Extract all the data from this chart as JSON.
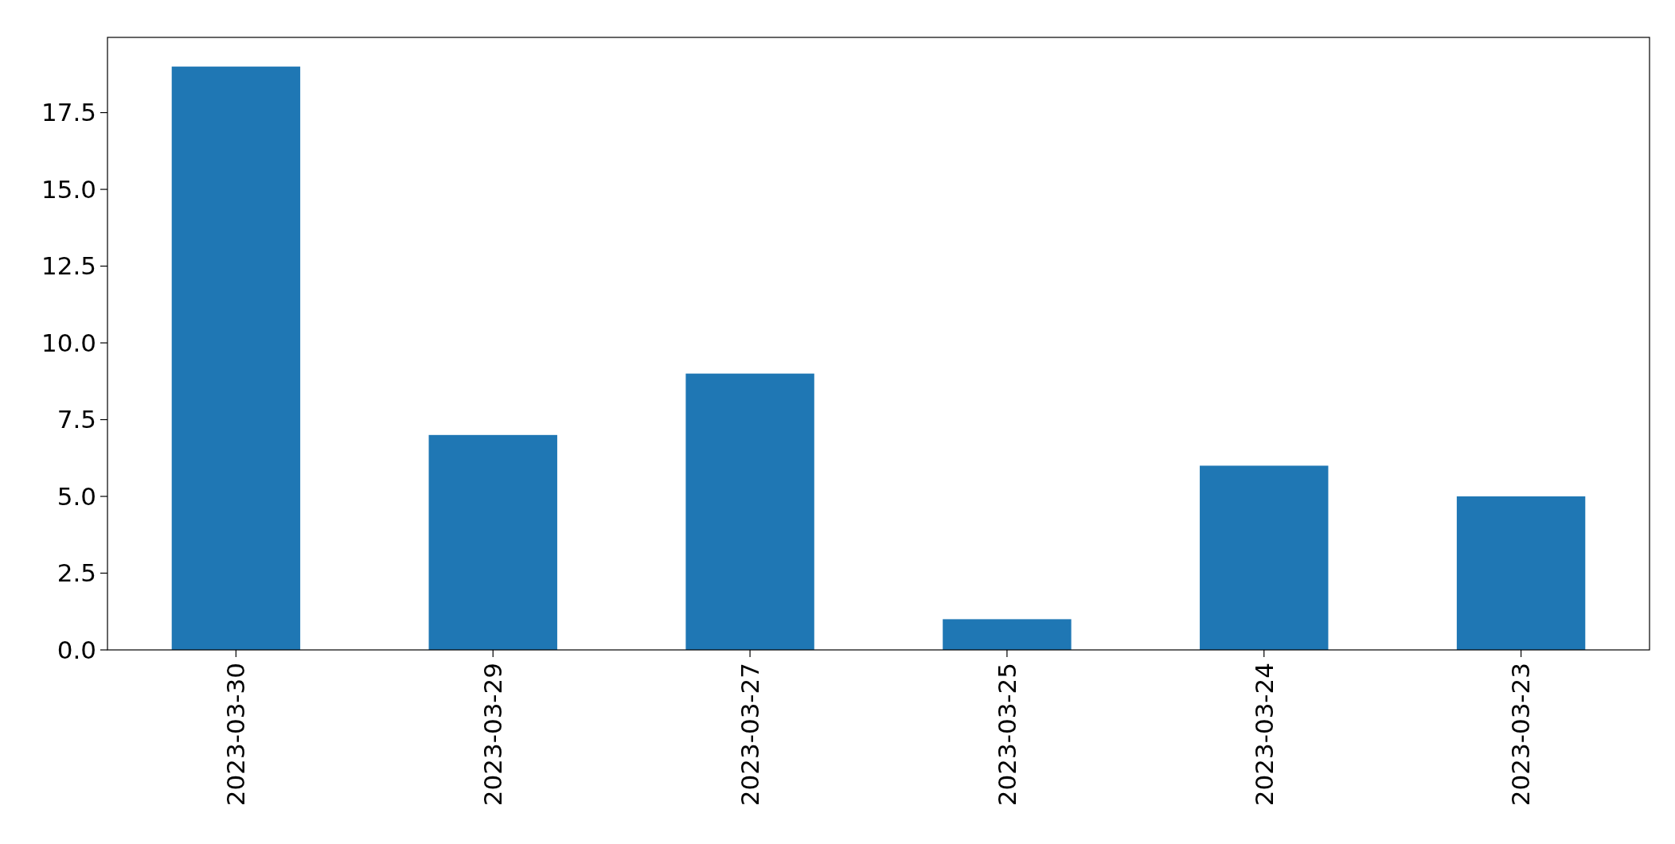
{
  "chart_data": {
    "type": "bar",
    "categories": [
      "2023-03-30",
      "2023-03-29",
      "2023-03-27",
      "2023-03-25",
      "2023-03-24",
      "2023-03-23"
    ],
    "values": [
      19,
      7,
      9,
      1,
      6,
      5
    ],
    "color": "#1f77b4",
    "ylim": [
      0,
      19.95
    ],
    "yticks": [
      {
        "value": 0,
        "label": "0.0"
      },
      {
        "value": 2.5,
        "label": "2.5"
      },
      {
        "value": 5,
        "label": "5.0"
      },
      {
        "value": 7.5,
        "label": "7.5"
      },
      {
        "value": 10,
        "label": "10.0"
      },
      {
        "value": 12.5,
        "label": "12.5"
      },
      {
        "value": 15,
        "label": "15.0"
      },
      {
        "value": 17.5,
        "label": "17.5"
      }
    ]
  }
}
